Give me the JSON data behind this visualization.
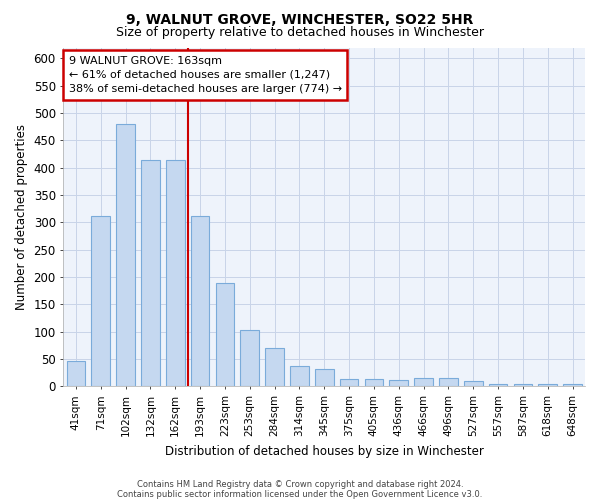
{
  "title1": "9, WALNUT GROVE, WINCHESTER, SO22 5HR",
  "title2": "Size of property relative to detached houses in Winchester",
  "xlabel": "Distribution of detached houses by size in Winchester",
  "ylabel": "Number of detached properties",
  "categories": [
    "41sqm",
    "71sqm",
    "102sqm",
    "132sqm",
    "162sqm",
    "193sqm",
    "223sqm",
    "253sqm",
    "284sqm",
    "314sqm",
    "345sqm",
    "375sqm",
    "405sqm",
    "436sqm",
    "466sqm",
    "496sqm",
    "527sqm",
    "557sqm",
    "587sqm",
    "618sqm",
    "648sqm"
  ],
  "values": [
    46,
    312,
    480,
    415,
    415,
    312,
    190,
    103,
    70,
    38,
    32,
    14,
    14,
    12,
    15,
    15,
    10,
    5,
    5,
    5,
    5
  ],
  "bar_color": "#c5d8f0",
  "bar_edge_color": "#7aabda",
  "vline_color": "#cc0000",
  "annotation_box_text": "9 WALNUT GROVE: 163sqm\n← 61% of detached houses are smaller (1,247)\n38% of semi-detached houses are larger (774) →",
  "annotation_box_color": "#ffffff",
  "annotation_box_edge_color": "#cc0000",
  "footer1": "Contains HM Land Registry data © Crown copyright and database right 2024.",
  "footer2": "Contains public sector information licensed under the Open Government Licence v3.0.",
  "ylim": [
    0,
    620
  ],
  "yticks": [
    0,
    50,
    100,
    150,
    200,
    250,
    300,
    350,
    400,
    450,
    500,
    550,
    600
  ],
  "bg_color": "#eef3fb",
  "grid_color": "#c8d4e8",
  "bar_width": 0.75,
  "vline_x_index": 4.5
}
